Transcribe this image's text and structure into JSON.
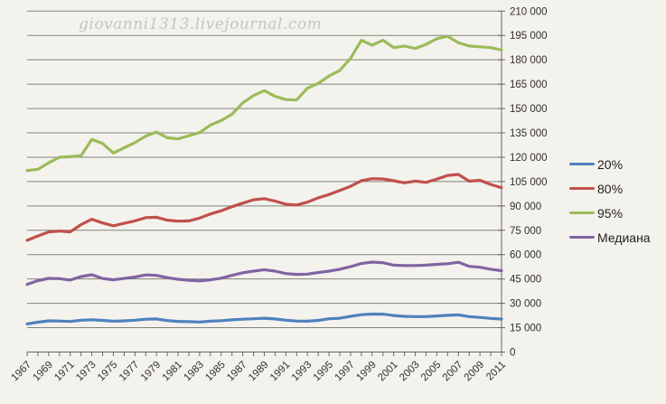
{
  "watermark": {
    "text": "giovanni1313.livejournal.com"
  },
  "colors": {
    "background": "#F4F2ED",
    "gridline": "#84827B",
    "axis": "#6A675F",
    "tick_text": "#322F2A",
    "legend_text": "#211E1A",
    "watermark_text": "#C6C4BE",
    "series_20": "#4F81BD",
    "series_80": "#C0504D",
    "series_95": "#9BBB59",
    "series_median": "#8064A2"
  },
  "chart_data": {
    "type": "line",
    "title": "",
    "xlabel": "",
    "ylabel": "",
    "grid": "horizontal",
    "legend_position": "right",
    "x_label_every": 2,
    "ylim": [
      0,
      210000
    ],
    "ytick_step": 15000,
    "ytick_labels": [
      "0",
      "15 000",
      "30 000",
      "45 000",
      "60 000",
      "75 000",
      "90 000",
      "105 000",
      "120 000",
      "135 000",
      "150 000",
      "165 000",
      "180 000",
      "195 000",
      "210 000"
    ],
    "x": [
      1967,
      1968,
      1969,
      1970,
      1971,
      1972,
      1973,
      1974,
      1975,
      1976,
      1977,
      1978,
      1979,
      1980,
      1981,
      1982,
      1983,
      1984,
      1985,
      1986,
      1987,
      1988,
      1989,
      1990,
      1991,
      1992,
      1993,
      1994,
      1995,
      1996,
      1997,
      1998,
      1999,
      2000,
      2001,
      2002,
      2003,
      2004,
      2005,
      2006,
      2007,
      2008,
      2009,
      2010,
      2011
    ],
    "series": [
      {
        "name": "20%",
        "color": "#4F81BD",
        "values": [
          17300,
          18400,
          19200,
          19100,
          18800,
          19600,
          19900,
          19500,
          19000,
          19200,
          19600,
          20200,
          20400,
          19400,
          18900,
          18700,
          18500,
          19000,
          19300,
          19800,
          20200,
          20500,
          20800,
          20400,
          19600,
          19100,
          19000,
          19500,
          20500,
          20800,
          22000,
          23000,
          23400,
          23300,
          22500,
          22000,
          21800,
          21800,
          22200,
          22600,
          22900,
          21800,
          21300,
          20700,
          20300
        ]
      },
      {
        "name": "80%",
        "color": "#C0504D",
        "values": [
          68800,
          71500,
          74000,
          74500,
          74000,
          78500,
          81800,
          79500,
          77800,
          79300,
          80800,
          82800,
          83000,
          81200,
          80600,
          80800,
          82500,
          85000,
          87000,
          89500,
          91700,
          93800,
          94500,
          93000,
          91000,
          90600,
          92300,
          95000,
          97000,
          99500,
          102100,
          105500,
          106800,
          106600,
          105500,
          104200,
          105300,
          104500,
          106500,
          108800,
          109400,
          105200,
          105800,
          103200,
          101200
        ]
      },
      {
        "name": "95%",
        "color": "#9BBB59",
        "values": [
          111800,
          112500,
          116600,
          120000,
          120300,
          121000,
          131000,
          128500,
          122600,
          125800,
          129000,
          133000,
          135500,
          132000,
          131300,
          133300,
          135200,
          139800,
          142600,
          146500,
          153500,
          158000,
          161000,
          157500,
          155500,
          155300,
          162500,
          165500,
          170000,
          173500,
          181000,
          192000,
          189000,
          192000,
          187500,
          188500,
          187000,
          189500,
          193000,
          194500,
          190500,
          188500,
          188000,
          187500,
          186000
        ]
      },
      {
        "name": "Медиана",
        "color": "#8064A2",
        "values": [
          41700,
          44000,
          45400,
          45200,
          44300,
          46500,
          47600,
          45300,
          44500,
          45300,
          46200,
          47500,
          47200,
          45800,
          44800,
          44200,
          43800,
          44500,
          45500,
          47200,
          48800,
          49800,
          50700,
          49800,
          48300,
          47800,
          48000,
          49000,
          49800,
          51000,
          52600,
          54500,
          55400,
          55000,
          53500,
          53300,
          53300,
          53500,
          54000,
          54400,
          55300,
          52800,
          52200,
          51000,
          50100
        ]
      }
    ]
  }
}
